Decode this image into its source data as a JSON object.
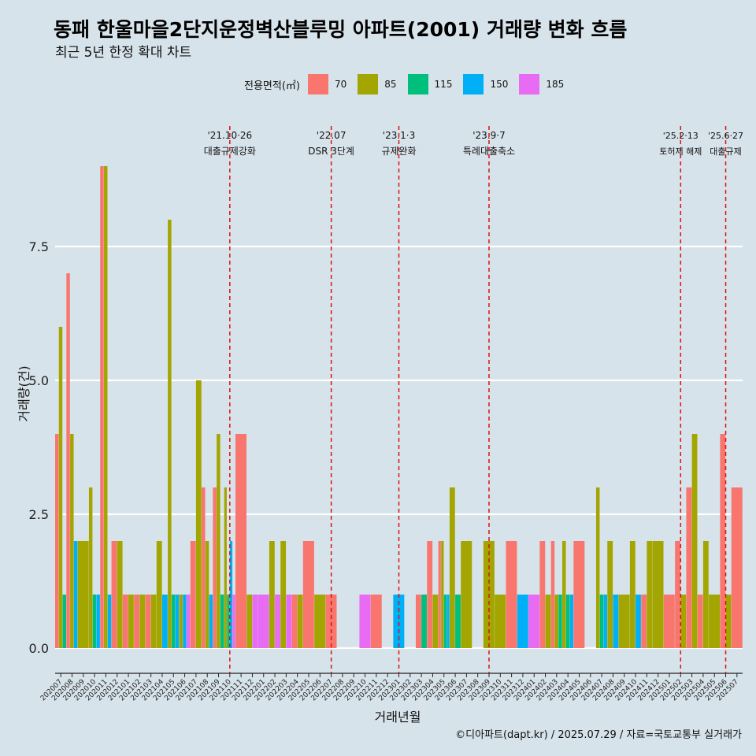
{
  "title": "동패 한울마을2단지운정벽산블루밍 아파트(2001) 거래량 변화 흐름",
  "subtitle": "최근 5년 한정 확대 차트",
  "caption": "©디아파트(dapt.kr) / 2025.07.29 / 자료=국토교통부 실거래가",
  "legend": {
    "title": "전용면적(㎡)",
    "items": [
      {
        "label": "70",
        "color": "#f8766d"
      },
      {
        "label": "85",
        "color": "#a3a500"
      },
      {
        "label": "115",
        "color": "#00bf7d"
      },
      {
        "label": "150",
        "color": "#00b0f6"
      },
      {
        "label": "185",
        "color": "#e76bf3"
      }
    ]
  },
  "chart_data": {
    "type": "bar",
    "xlabel": "거래년월",
    "ylabel": "거래량(건)",
    "ylim": [
      0,
      9
    ],
    "yticks": [
      "0.0",
      "2.5",
      "5.0",
      "7.5"
    ],
    "ytick_values": [
      0,
      2.5,
      5,
      7.5
    ],
    "grid": true,
    "legend_position": "top",
    "categories": [
      "202007",
      "202008",
      "202009",
      "202010",
      "202011",
      "202012",
      "202101",
      "202102",
      "202103",
      "202104",
      "202105",
      "202106",
      "202107",
      "202108",
      "202109",
      "202110",
      "202111",
      "202112",
      "202201",
      "202202",
      "202203",
      "202204",
      "202205",
      "202206",
      "202207",
      "202208",
      "202209",
      "202210",
      "202211",
      "202212",
      "202301",
      "202302",
      "202303",
      "202304",
      "202305",
      "202306",
      "202307",
      "202308",
      "202309",
      "202310",
      "202311",
      "202312",
      "202401",
      "202402",
      "202403",
      "202404",
      "202405",
      "202406",
      "202407",
      "202408",
      "202409",
      "202410",
      "202411",
      "202412",
      "202501",
      "202502",
      "202503",
      "202504",
      "202505",
      "202506",
      "202507"
    ],
    "series": [
      {
        "name": "70",
        "color": "#f8766d",
        "values": [
          4,
          7,
          0,
          0,
          9,
          2,
          1,
          1,
          1,
          0,
          0,
          0,
          2,
          3,
          3,
          0,
          4,
          0,
          0,
          0,
          0,
          1,
          2,
          0,
          1,
          0,
          0,
          0,
          1,
          0,
          0,
          0,
          1,
          2,
          2,
          0,
          0,
          0,
          0,
          0,
          2,
          0,
          0,
          2,
          2,
          0,
          2,
          0,
          0,
          0,
          0,
          0,
          1,
          0,
          1,
          2,
          3,
          1,
          0,
          4,
          3
        ]
      },
      {
        "name": "85",
        "color": "#a3a500",
        "values": [
          6,
          4,
          2,
          3,
          9,
          2,
          1,
          1,
          1,
          2,
          8,
          1,
          5,
          2,
          4,
          3,
          0,
          1,
          0,
          2,
          2,
          1,
          0,
          1,
          0,
          0,
          0,
          0,
          0,
          0,
          0,
          0,
          0,
          1,
          2,
          3,
          2,
          0,
          2,
          1,
          0,
          0,
          0,
          1,
          1,
          2,
          0,
          0,
          3,
          2,
          1,
          2,
          2,
          2,
          0,
          1,
          4,
          2,
          1,
          1,
          0
        ]
      },
      {
        "name": "115",
        "color": "#00bf7d",
        "values": [
          1,
          0,
          0,
          1,
          0,
          0,
          0,
          0,
          0,
          0,
          1,
          0,
          0,
          0,
          1,
          1,
          0,
          0,
          0,
          0,
          0,
          0,
          0,
          0,
          0,
          0,
          0,
          0,
          0,
          0,
          0,
          0,
          1,
          0,
          1,
          1,
          0,
          0,
          0,
          0,
          0,
          0,
          0,
          0,
          1,
          1,
          0,
          0,
          1,
          0,
          0,
          0,
          0,
          0,
          0,
          0,
          0,
          0,
          0,
          0,
          0
        ]
      },
      {
        "name": "150",
        "color": "#00b0f6",
        "values": [
          0,
          2,
          0,
          1,
          1,
          0,
          0,
          0,
          0,
          1,
          1,
          1,
          0,
          1,
          0,
          2,
          0,
          0,
          0,
          0,
          0,
          0,
          0,
          0,
          0,
          0,
          0,
          0,
          0,
          0,
          1,
          0,
          0,
          0,
          1,
          0,
          0,
          0,
          0,
          0,
          0,
          1,
          0,
          0,
          0,
          1,
          0,
          0,
          1,
          1,
          0,
          1,
          0,
          0,
          0,
          0,
          0,
          0,
          0,
          0,
          0
        ]
      },
      {
        "name": "185",
        "color": "#e76bf3",
        "values": [
          0,
          0,
          0,
          0,
          0,
          0,
          0,
          0,
          0,
          0,
          0,
          1,
          0,
          0,
          0,
          1,
          0,
          1,
          1,
          1,
          1,
          0,
          0,
          0,
          0,
          0,
          0,
          1,
          0,
          0,
          0,
          0,
          0,
          0,
          0,
          0,
          0,
          0,
          0,
          0,
          0,
          0,
          1,
          0,
          0,
          0,
          0,
          0,
          0,
          0,
          0,
          0,
          0,
          0,
          0,
          0,
          0,
          0,
          0,
          0,
          0
        ]
      }
    ],
    "annotations": [
      {
        "date": "'21.10·26",
        "label": "대출규제강화",
        "index": 15
      },
      {
        "date": "'22.07",
        "label": "DSR 3단계",
        "index": 24
      },
      {
        "date": "'23.1·3",
        "label": "규제완화",
        "index": 30
      },
      {
        "date": "'23.9·7",
        "label": "특례대출축소",
        "index": 38
      },
      {
        "date": "'25.2·13",
        "label": "토허제 해제",
        "index": 55
      },
      {
        "date": "'25.6·27",
        "label": "대출규제",
        "index": 59
      }
    ]
  }
}
